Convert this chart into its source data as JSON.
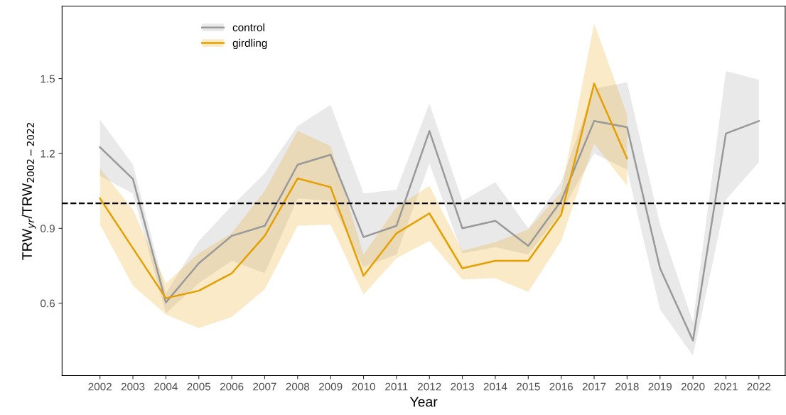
{
  "chart_data": {
    "type": "line",
    "xlabel": "Year",
    "ylabel": "TRW$_{yr}$/TRW$_{2002−2022}$",
    "x": [
      2002,
      2003,
      2004,
      2005,
      2006,
      2007,
      2008,
      2009,
      2010,
      2011,
      2012,
      2013,
      2014,
      2015,
      2016,
      2017,
      2018,
      2019,
      2020,
      2021,
      2022
    ],
    "xlim": [
      2000.85,
      2022.8
    ],
    "xticks": [
      2002,
      2003,
      2004,
      2005,
      2006,
      2007,
      2008,
      2009,
      2010,
      2011,
      2012,
      2013,
      2014,
      2015,
      2016,
      2017,
      2018,
      2019,
      2020,
      2021,
      2022
    ],
    "ylim": [
      0.31,
      1.79
    ],
    "yticks": [
      0.6,
      0.9,
      1.2,
      1.5
    ],
    "series": [
      {
        "name": "control",
        "color": "#999999",
        "values": [
          1.225,
          1.098,
          0.603,
          0.76,
          0.87,
          0.91,
          1.155,
          1.195,
          0.865,
          0.91,
          1.29,
          0.9,
          0.93,
          0.83,
          1.01,
          1.33,
          1.305,
          0.74,
          0.45,
          1.28,
          1.33
        ],
        "lower": [
          1.11,
          1.04,
          0.56,
          0.68,
          0.77,
          0.72,
          1.02,
          1.01,
          0.745,
          0.795,
          1.16,
          0.8,
          0.825,
          0.795,
          0.965,
          1.2,
          1.135,
          0.575,
          0.39,
          1.015,
          1.165
        ],
        "upper": [
          1.335,
          1.155,
          0.64,
          0.85,
          0.99,
          1.12,
          1.31,
          1.395,
          1.04,
          1.055,
          1.4,
          1.01,
          1.085,
          0.9,
          1.085,
          1.46,
          1.485,
          0.915,
          0.525,
          1.53,
          1.495
        ]
      },
      {
        "name": "girdling",
        "color": "#e69f00",
        "x": [
          2002,
          2003,
          2004,
          2005,
          2006,
          2007,
          2008,
          2009,
          2010,
          2011,
          2012,
          2013,
          2014,
          2015,
          2016,
          2017,
          2018
        ],
        "values": [
          1.02,
          0.82,
          0.62,
          0.65,
          0.72,
          0.87,
          1.1,
          1.065,
          0.71,
          0.88,
          0.96,
          0.74,
          0.77,
          0.77,
          0.955,
          1.48,
          1.18
        ],
        "lower": [
          0.915,
          0.67,
          0.555,
          0.5,
          0.545,
          0.655,
          0.91,
          0.915,
          0.635,
          0.78,
          0.85,
          0.695,
          0.7,
          0.645,
          0.85,
          1.24,
          1.07
        ],
        "upper": [
          1.14,
          0.975,
          0.68,
          0.8,
          0.88,
          1.05,
          1.29,
          1.23,
          0.795,
          0.985,
          1.07,
          0.81,
          0.845,
          0.895,
          1.045,
          1.72,
          1.355
        ]
      }
    ],
    "ref_lines": [
      {
        "axis": "y",
        "value": 1.0,
        "color": "#000000",
        "line_style": "dashed"
      }
    ],
    "legend": "top left",
    "grid": false,
    "line_style": "solid",
    "marker": "none"
  }
}
